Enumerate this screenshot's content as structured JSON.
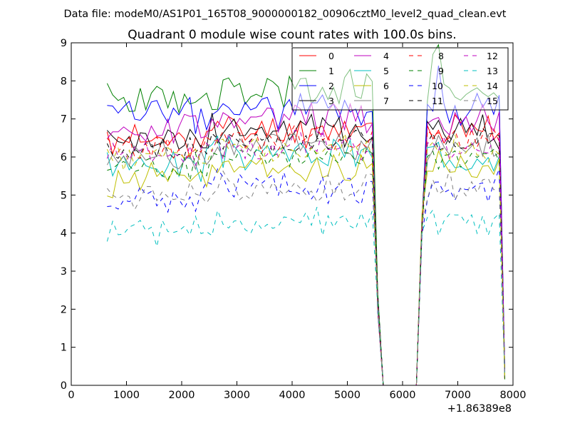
{
  "figure": {
    "suptitle": "Data file: modeM0/AS1P01_165T08_9000000182_00906cztM0_level2_quad_clean.evt"
  },
  "chart_data": {
    "type": "line",
    "title": "Quadrant 0 module wise count rates with 100.0s bins.",
    "xlabel": "",
    "ylabel": "",
    "x_offset_label": "+1.86389e8",
    "xlim": [
      0,
      8000
    ],
    "ylim": [
      0,
      9
    ],
    "xticks": [
      0,
      1000,
      2000,
      3000,
      4000,
      5000,
      6000,
      7000,
      8000
    ],
    "yticks": [
      0,
      1,
      2,
      3,
      4,
      5,
      6,
      7,
      8,
      9
    ],
    "grid": false,
    "legend_position": "upper-right",
    "legend_columns": 4,
    "series_count": 16,
    "series": [
      {
        "name": "0",
        "color": "#ff0000",
        "linestyle": "solid",
        "base": 6.45,
        "amp": 0.35,
        "seed": 11
      },
      {
        "name": "1",
        "color": "#008000",
        "linestyle": "solid",
        "base": 7.45,
        "amp": 0.4,
        "seed": 23
      },
      {
        "name": "2",
        "color": "#0000ff",
        "linestyle": "solid",
        "base": 7.05,
        "amp": 0.4,
        "seed": 37
      },
      {
        "name": "3",
        "color": "#000000",
        "linestyle": "solid",
        "base": 6.45,
        "amp": 0.4,
        "seed": 41
      },
      {
        "name": "4",
        "color": "#bf00bf",
        "linestyle": "solid",
        "base": 6.75,
        "amp": 0.35,
        "seed": 53
      },
      {
        "name": "5",
        "color": "#00bfbf",
        "linestyle": "solid",
        "base": 5.85,
        "amp": 0.35,
        "seed": 67
      },
      {
        "name": "6",
        "color": "#bfbf00",
        "linestyle": "solid",
        "base": 5.45,
        "amp": 0.35,
        "seed": 71
      },
      {
        "name": "7",
        "color": "#808080",
        "linestyle": "solid",
        "base": 6.05,
        "amp": 0.35,
        "seed": 83
      },
      {
        "name": "8",
        "color": "#ff0000",
        "linestyle": "dashed",
        "base": 6.25,
        "amp": 0.3,
        "seed": 97
      },
      {
        "name": "9",
        "color": "#008000",
        "linestyle": "dashed",
        "base": 5.75,
        "amp": 0.3,
        "seed": 101
      },
      {
        "name": "10",
        "color": "#0000ff",
        "linestyle": "dashed",
        "base": 4.95,
        "amp": 0.35,
        "seed": 113
      },
      {
        "name": "11",
        "color": "#000000",
        "linestyle": "dashed",
        "base": 6.15,
        "amp": 0.25,
        "seed": 127
      },
      {
        "name": "12",
        "color": "#bf00bf",
        "linestyle": "dashed",
        "base": 6.05,
        "amp": 0.3,
        "seed": 131
      },
      {
        "name": "13",
        "color": "#00bfbf",
        "linestyle": "dashed",
        "base": 4.05,
        "amp": 0.3,
        "seed": 149
      },
      {
        "name": "14",
        "color": "#bfbf00",
        "linestyle": "dashed",
        "base": 5.95,
        "amp": 0.3,
        "seed": 157
      },
      {
        "name": "15",
        "color": "#808080",
        "linestyle": "dashed",
        "base": 4.95,
        "amp": 0.35,
        "seed": 163
      }
    ],
    "x": [
      650,
      750,
      850,
      950,
      1050,
      1150,
      1250,
      1350,
      1450,
      1550,
      1650,
      1750,
      1850,
      1950,
      2050,
      2150,
      2250,
      2350,
      2450,
      2550,
      2650,
      2750,
      2850,
      2950,
      3050,
      3150,
      3250,
      3350,
      3450,
      3550,
      3650,
      3750,
      3850,
      3950,
      4050,
      4150,
      4250,
      4350,
      4450,
      4550,
      4650,
      4750,
      4850,
      4950,
      5050,
      5150,
      5250,
      5350,
      5450,
      5550,
      5650,
      5750,
      5850,
      5950,
      6050,
      6150,
      6250,
      6350,
      6450,
      6550,
      6650,
      6750,
      6850,
      6950,
      7050,
      7150,
      7250,
      7350,
      7450,
      7550,
      7650,
      7750,
      7850
    ],
    "gap_values": {
      "5550": 2.2,
      "5650": 0,
      "5750": 0,
      "5850": 0,
      "5950": 0,
      "6050": 0,
      "6150": 0,
      "6250": 0,
      "6350": 4.2
    },
    "end_value": 0.15,
    "peaks": [
      {
        "series": "1",
        "x": 6650,
        "value": 8.95
      },
      {
        "series": "1",
        "x": 6550,
        "value": 8.7
      },
      {
        "series": "2",
        "x": 6650,
        "value": 8.4
      },
      {
        "series": "1",
        "x": 5050,
        "value": 8.3
      }
    ]
  }
}
